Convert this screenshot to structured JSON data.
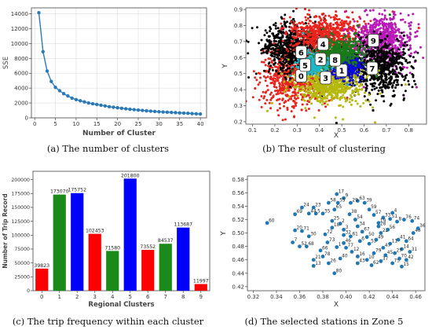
{
  "figure": {
    "captions": [
      "(a)  The number of clusters",
      "(b)  The result of clustering",
      "(c)  The trip frequency within each cluster",
      "(d)  The selected stations in Zone 5"
    ]
  },
  "chart_data": [
    {
      "id": "elbow",
      "type": "line",
      "title": "",
      "xlabel": "Number of Cluster",
      "ylabel": "SSE",
      "xlim": [
        -0.8,
        41.5
      ],
      "ylim": [
        0,
        14800
      ],
      "xticks": [
        0,
        5,
        10,
        15,
        20,
        25,
        30,
        35,
        40
      ],
      "yticks": [
        0,
        2000,
        4000,
        6000,
        8000,
        10000,
        12000,
        14000
      ],
      "grid": true,
      "colors": {
        "line": "#2a7ab8",
        "grid": "#dcdcdc"
      },
      "series": [
        {
          "x": [
            1,
            2,
            3,
            4,
            5,
            6,
            7,
            8,
            9,
            10,
            11,
            12,
            13,
            14,
            15,
            16,
            17,
            18,
            19,
            20,
            21,
            22,
            23,
            24,
            25,
            26,
            27,
            28,
            29,
            30,
            31,
            32,
            33,
            34,
            35,
            36,
            37,
            38,
            39,
            40
          ],
          "y": [
            14150,
            8900,
            6300,
            4900,
            4100,
            3650,
            3250,
            2950,
            2650,
            2450,
            2300,
            2150,
            2000,
            1900,
            1800,
            1700,
            1600,
            1500,
            1430,
            1360,
            1290,
            1220,
            1160,
            1100,
            1050,
            1000,
            950,
            900,
            860,
            820,
            790,
            760,
            730,
            700,
            670,
            640,
            610,
            580,
            550,
            520
          ]
        }
      ]
    },
    {
      "id": "clustering",
      "type": "scatter",
      "title": "",
      "xlabel": "X",
      "ylabel": "Y",
      "xlim": [
        0.07,
        0.88
      ],
      "ylim": [
        0.185,
        0.91
      ],
      "xticks": [
        0.1,
        0.2,
        0.3,
        0.4,
        0.5,
        0.6,
        0.7,
        0.8
      ],
      "yticks": [
        0.2,
        0.3,
        0.4,
        0.5,
        0.6,
        0.7,
        0.8,
        0.9
      ],
      "grid": false,
      "clusters": [
        {
          "label": "0",
          "color": "#e8241c",
          "cx": 0.29,
          "cy": 0.48,
          "sx": 0.075,
          "sy": 0.095,
          "label_x": 0.318,
          "label_y": 0.486
        },
        {
          "label": "1",
          "color": "#0c0cd6",
          "cx": 0.525,
          "cy": 0.545,
          "sx": 0.035,
          "sy": 0.035,
          "label_x": 0.5,
          "label_y": 0.52
        },
        {
          "label": "2",
          "color": "#1a7a1a",
          "cx": 0.435,
          "cy": 0.595,
          "sx": 0.035,
          "sy": 0.032,
          "label_x": 0.405,
          "label_y": 0.59
        },
        {
          "label": "3",
          "color": "#b5b80e",
          "cx": 0.44,
          "cy": 0.44,
          "sx": 0.075,
          "sy": 0.065,
          "label_x": 0.428,
          "label_y": 0.474
        },
        {
          "label": "4",
          "color": "#e8241c",
          "cx": 0.43,
          "cy": 0.74,
          "sx": 0.085,
          "sy": 0.06,
          "label_x": 0.416,
          "label_y": 0.685
        },
        {
          "label": "5",
          "color": "#20b8c8",
          "cx": 0.37,
          "cy": 0.555,
          "sx": 0.032,
          "sy": 0.03,
          "label_x": 0.336,
          "label_y": 0.553
        },
        {
          "label": "6",
          "color": "#000000",
          "cx": 0.28,
          "cy": 0.66,
          "sx": 0.07,
          "sy": 0.075,
          "label_x": 0.318,
          "label_y": 0.634
        },
        {
          "label": "7",
          "color": "#000000",
          "cx": 0.66,
          "cy": 0.545,
          "sx": 0.07,
          "sy": 0.08,
          "label_x": 0.637,
          "label_y": 0.533
        },
        {
          "label": "8",
          "color": "#1a7a1a",
          "cx": 0.51,
          "cy": 0.64,
          "sx": 0.038,
          "sy": 0.04,
          "label_x": 0.47,
          "label_y": 0.586
        },
        {
          "label": "9",
          "color": "#b81ab8",
          "cx": 0.68,
          "cy": 0.7,
          "sx": 0.065,
          "sy": 0.08,
          "label_x": 0.642,
          "label_y": 0.707
        }
      ]
    },
    {
      "id": "trip-frequency",
      "type": "bar",
      "title": "",
      "xlabel": "Regional Clusters",
      "ylabel": "Number of Trip Record",
      "ylim": [
        0,
        215000
      ],
      "yticks": [
        0,
        25000,
        50000,
        75000,
        100000,
        125000,
        150000,
        175000,
        200000
      ],
      "grid": false,
      "categories": [
        "0",
        "1",
        "2",
        "3",
        "4",
        "5",
        "6",
        "7",
        "8",
        "9"
      ],
      "values": [
        39823,
        173070,
        175752,
        102453,
        71580,
        201800,
        73552,
        84537,
        113687,
        11997
      ],
      "colors": [
        "#ff0000",
        "#1a8a1a",
        "#0000ff",
        "#ff0000",
        "#1a8a1a",
        "#0000ff",
        "#ff0000",
        "#1a8a1a",
        "#0000ff",
        "#ff0000"
      ]
    },
    {
      "id": "zone5-stations",
      "type": "scatter",
      "title": "",
      "xlabel": "X",
      "ylabel": "Y",
      "xlim": [
        0.315,
        0.468
      ],
      "ylim": [
        0.414,
        0.585
      ],
      "xticks": [
        0.32,
        0.34,
        0.36,
        0.38,
        0.4,
        0.42,
        0.44,
        0.46
      ],
      "yticks": [
        0.42,
        0.44,
        0.46,
        0.48,
        0.5,
        0.52,
        0.54,
        0.56,
        0.58
      ],
      "grid": false,
      "colors": {
        "point": "#1f77b4"
      },
      "points": [
        {
          "x": 0.332,
          "y": 0.515,
          "label": "60"
        },
        {
          "x": 0.356,
          "y": 0.504,
          "label": "20"
        },
        {
          "x": 0.362,
          "y": 0.503,
          "label": "71"
        },
        {
          "x": 0.368,
          "y": 0.495,
          "label": "30"
        },
        {
          "x": 0.354,
          "y": 0.486,
          "label": "7"
        },
        {
          "x": 0.36,
          "y": 0.48,
          "label": "52"
        },
        {
          "x": 0.366,
          "y": 0.48,
          "label": "68"
        },
        {
          "x": 0.356,
          "y": 0.528,
          "label": "69"
        },
        {
          "x": 0.368,
          "y": 0.529,
          "label": "44"
        },
        {
          "x": 0.374,
          "y": 0.529,
          "label": "5"
        },
        {
          "x": 0.38,
          "y": 0.529,
          "label": "35"
        },
        {
          "x": 0.362,
          "y": 0.538,
          "label": "24"
        },
        {
          "x": 0.372,
          "y": 0.538,
          "label": "23"
        },
        {
          "x": 0.385,
          "y": 0.545,
          "label": "58"
        },
        {
          "x": 0.392,
          "y": 0.558,
          "label": "17"
        },
        {
          "x": 0.372,
          "y": 0.46,
          "label": "21"
        },
        {
          "x": 0.372,
          "y": 0.451,
          "label": "13"
        },
        {
          "x": 0.38,
          "y": 0.465,
          "label": "78"
        },
        {
          "x": 0.385,
          "y": 0.455,
          "label": "26"
        },
        {
          "x": 0.39,
          "y": 0.44,
          "label": "80"
        },
        {
          "x": 0.395,
          "y": 0.462,
          "label": "40"
        },
        {
          "x": 0.392,
          "y": 0.479,
          "label": "1"
        },
        {
          "x": 0.398,
          "y": 0.485,
          "label": "46"
        },
        {
          "x": 0.4,
          "y": 0.478,
          "label": "77"
        },
        {
          "x": 0.405,
          "y": 0.472,
          "label": "12"
        },
        {
          "x": 0.41,
          "y": 0.465,
          "label": "16"
        },
        {
          "x": 0.41,
          "y": 0.455,
          "label": "43"
        },
        {
          "x": 0.418,
          "y": 0.46,
          "label": "10"
        },
        {
          "x": 0.422,
          "y": 0.452,
          "label": "62"
        },
        {
          "x": 0.43,
          "y": 0.458,
          "label": "37"
        },
        {
          "x": 0.434,
          "y": 0.467,
          "label": "45"
        },
        {
          "x": 0.44,
          "y": 0.455,
          "label": "75"
        },
        {
          "x": 0.446,
          "y": 0.462,
          "label": "70"
        },
        {
          "x": 0.452,
          "y": 0.46,
          "label": "42"
        },
        {
          "x": 0.448,
          "y": 0.476,
          "label": "14"
        },
        {
          "x": 0.455,
          "y": 0.472,
          "label": "31"
        },
        {
          "x": 0.445,
          "y": 0.49,
          "label": "41"
        },
        {
          "x": 0.452,
          "y": 0.488,
          "label": "64"
        },
        {
          "x": 0.458,
          "y": 0.5,
          "label": "48"
        },
        {
          "x": 0.462,
          "y": 0.507,
          "label": "36"
        },
        {
          "x": 0.457,
          "y": 0.518,
          "label": "74"
        },
        {
          "x": 0.45,
          "y": 0.52,
          "label": "76"
        },
        {
          "x": 0.444,
          "y": 0.517,
          "label": "8"
        },
        {
          "x": 0.438,
          "y": 0.521,
          "label": "51"
        },
        {
          "x": 0.432,
          "y": 0.523,
          "label": "33"
        },
        {
          "x": 0.428,
          "y": 0.515,
          "label": "19"
        },
        {
          "x": 0.424,
          "y": 0.527,
          "label": "57"
        },
        {
          "x": 0.42,
          "y": 0.535,
          "label": "59"
        },
        {
          "x": 0.416,
          "y": 0.545,
          "label": "39"
        },
        {
          "x": 0.41,
          "y": 0.548,
          "label": "63"
        },
        {
          "x": 0.404,
          "y": 0.545,
          "label": "29"
        },
        {
          "x": 0.398,
          "y": 0.552,
          "label": "9"
        },
        {
          "x": 0.393,
          "y": 0.545,
          "label": "55"
        },
        {
          "x": 0.39,
          "y": 0.535,
          "label": "65"
        },
        {
          "x": 0.388,
          "y": 0.518,
          "label": "25"
        },
        {
          "x": 0.388,
          "y": 0.508,
          "label": "18"
        },
        {
          "x": 0.395,
          "y": 0.514,
          "label": "2"
        },
        {
          "x": 0.398,
          "y": 0.505,
          "label": "3"
        },
        {
          "x": 0.403,
          "y": 0.528,
          "label": "38"
        },
        {
          "x": 0.408,
          "y": 0.52,
          "label": "54"
        },
        {
          "x": 0.41,
          "y": 0.51,
          "label": "34"
        },
        {
          "x": 0.414,
          "y": 0.502,
          "label": "67"
        },
        {
          "x": 0.418,
          "y": 0.494,
          "label": "50"
        },
        {
          "x": 0.412,
          "y": 0.488,
          "label": "6"
        },
        {
          "x": 0.42,
          "y": 0.484,
          "label": "53"
        },
        {
          "x": 0.426,
          "y": 0.49,
          "label": "49"
        },
        {
          "x": 0.43,
          "y": 0.5,
          "label": "22"
        },
        {
          "x": 0.436,
          "y": 0.505,
          "label": "56"
        },
        {
          "x": 0.432,
          "y": 0.478,
          "label": "47"
        },
        {
          "x": 0.438,
          "y": 0.484,
          "label": "11"
        },
        {
          "x": 0.404,
          "y": 0.495,
          "label": "61"
        },
        {
          "x": 0.398,
          "y": 0.497,
          "label": "32"
        },
        {
          "x": 0.384,
          "y": 0.486,
          "label": "73"
        },
        {
          "x": 0.378,
          "y": 0.474,
          "label": "66"
        },
        {
          "x": 0.382,
          "y": 0.498,
          "label": "72"
        },
        {
          "x": 0.424,
          "y": 0.47,
          "label": "79"
        },
        {
          "x": 0.442,
          "y": 0.47,
          "label": "27"
        },
        {
          "x": 0.448,
          "y": 0.45,
          "label": "15"
        },
        {
          "x": 0.428,
          "y": 0.51,
          "label": "28"
        },
        {
          "x": 0.44,
          "y": 0.53,
          "label": "4"
        }
      ]
    }
  ]
}
